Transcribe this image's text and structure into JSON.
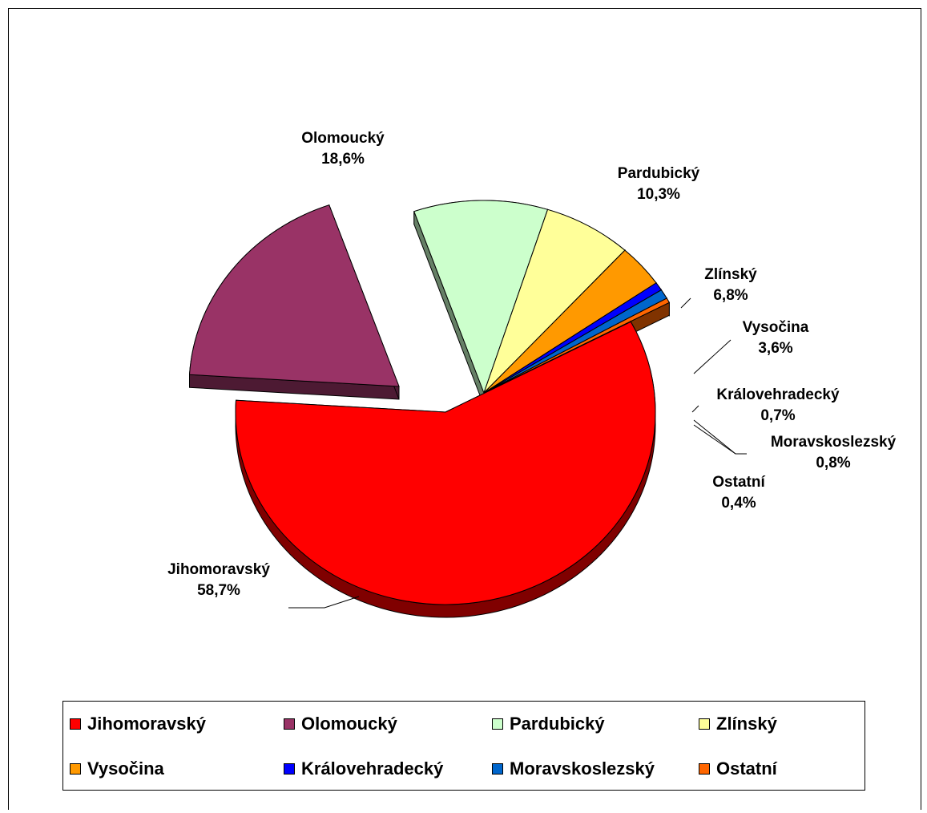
{
  "chart_data": {
    "type": "pie",
    "title": "",
    "slices": [
      {
        "name": "Jihomoravský",
        "value": 58.7,
        "label": "58,7%",
        "color": "#ff0000",
        "side": "#800000",
        "exploded": false
      },
      {
        "name": "Olomoucký",
        "value": 18.6,
        "label": "18,6%",
        "color": "#993366",
        "side": "#4d1a33",
        "exploded": true
      },
      {
        "name": "Pardubický",
        "value": 10.3,
        "label": "10,3%",
        "color": "#ccffcc",
        "side": "#668066",
        "exploded": true
      },
      {
        "name": "Zlínský",
        "value": 6.8,
        "label": "6,8%",
        "color": "#ffff99",
        "side": "#80804d",
        "exploded": true
      },
      {
        "name": "Vysočina",
        "value": 3.6,
        "label": "3,6%",
        "color": "#ff9900",
        "side": "#804d00",
        "exploded": true
      },
      {
        "name": "Královehradecký",
        "value": 0.7,
        "label": "0,7%",
        "color": "#0000ff",
        "side": "#000080",
        "exploded": true
      },
      {
        "name": "Moravskoslezský",
        "value": 0.8,
        "label": "0,8%",
        "color": "#0066cc",
        "side": "#003366",
        "exploded": true
      },
      {
        "name": "Ostatní",
        "value": 0.4,
        "label": "0,4%",
        "color": "#ff6600",
        "side": "#803300",
        "exploded": true
      }
    ],
    "legend_position": "bottom"
  }
}
